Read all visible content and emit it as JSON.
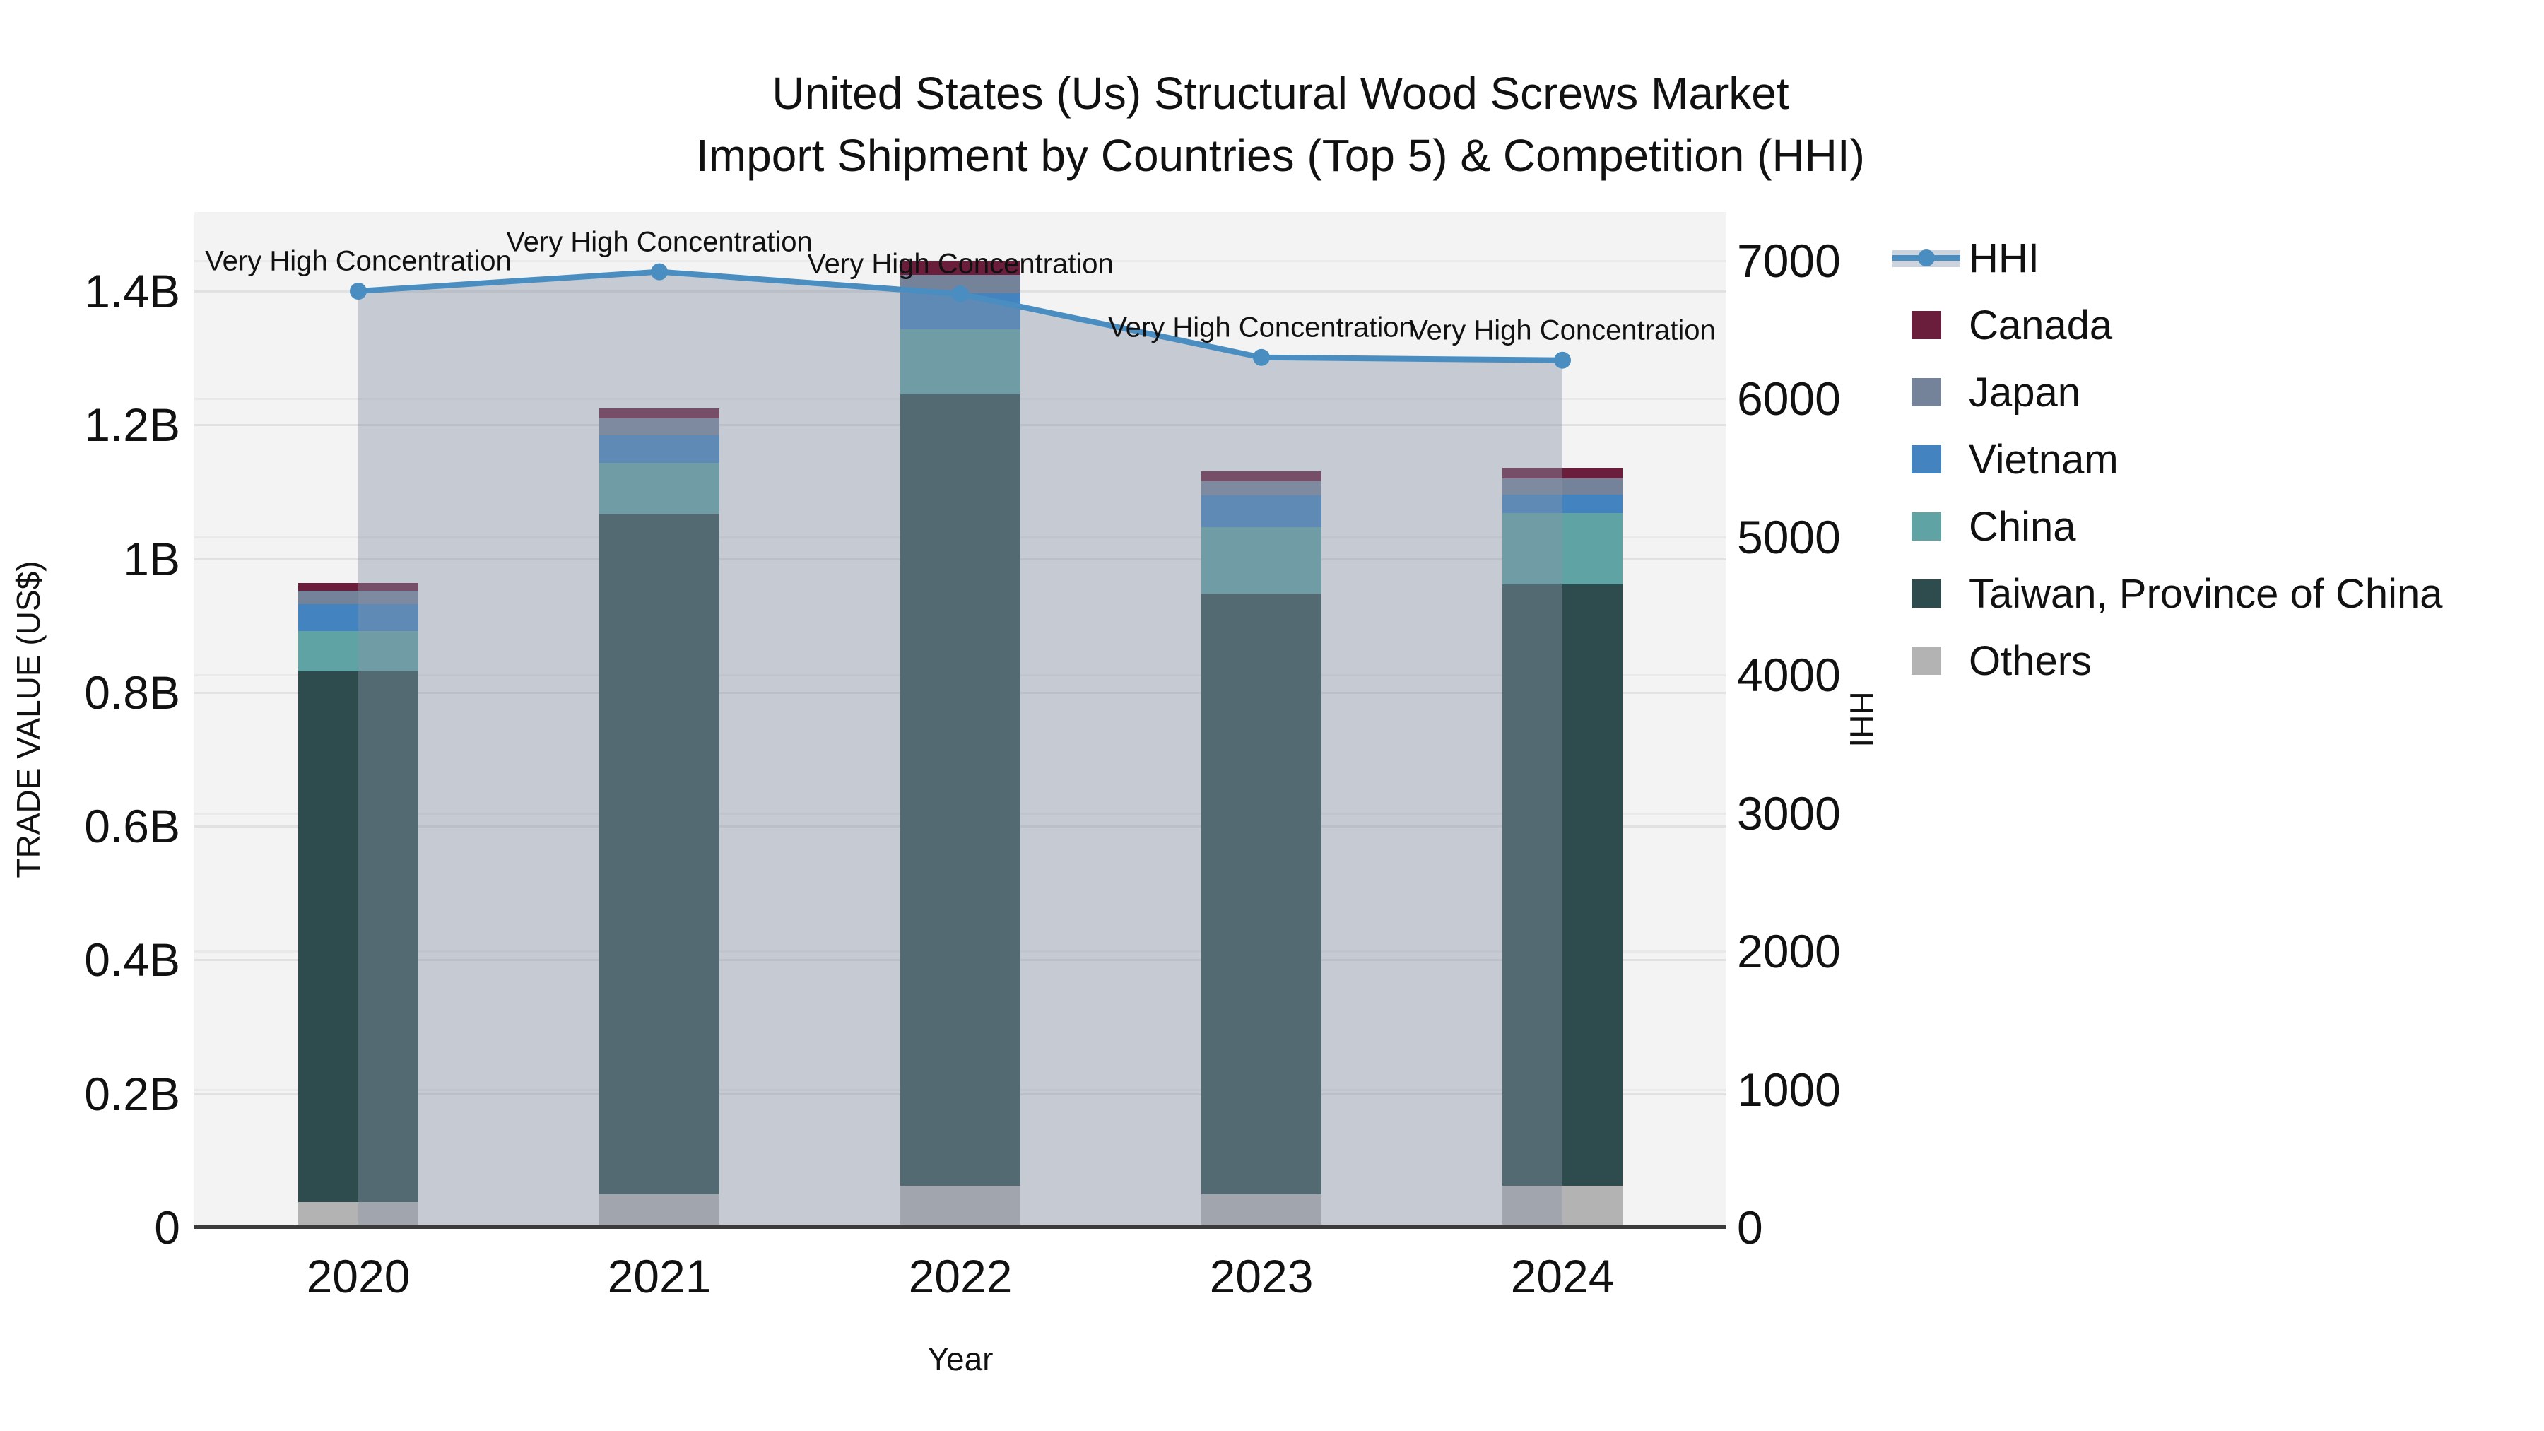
{
  "title": {
    "line1": "United States (Us) Structural Wood Screws Market",
    "line2": "Import Shipment by Countries (Top 5) & Competition (HHI)"
  },
  "axes": {
    "y_left": {
      "title": "TRADE VALUE (US$)",
      "tick_labels": [
        "0",
        "0.2B",
        "0.4B",
        "0.6B",
        "0.8B",
        "1B",
        "1.2B",
        "1.4B"
      ],
      "tick_values_musd": [
        0,
        200,
        400,
        600,
        800,
        1000,
        1200,
        1400
      ]
    },
    "y_right": {
      "title": "HHI",
      "tick_labels": [
        "0",
        "1000",
        "2000",
        "3000",
        "4000",
        "5000",
        "6000",
        "7000"
      ],
      "tick_values": [
        0,
        1000,
        2000,
        3000,
        4000,
        5000,
        6000,
        7000
      ]
    },
    "x": {
      "title": "Year",
      "categories": [
        "2020",
        "2021",
        "2022",
        "2023",
        "2024"
      ]
    }
  },
  "legend": {
    "items": [
      {
        "label": "HHI",
        "type": "line",
        "color": "#4a8dc0"
      },
      {
        "label": "Canada",
        "type": "swatch",
        "color": "#6b1d3c"
      },
      {
        "label": "Japan",
        "type": "swatch",
        "color": "#75839a"
      },
      {
        "label": "Vietnam",
        "type": "swatch",
        "color": "#4383c0"
      },
      {
        "label": "China",
        "type": "swatch",
        "color": "#60a3a4"
      },
      {
        "label": "Taiwan, Province of China",
        "type": "swatch",
        "color": "#2e4c4e"
      },
      {
        "label": "Others",
        "type": "swatch",
        "color": "#b3b3b4"
      }
    ]
  },
  "annotation_label": "Very High Concentration",
  "chart_data": {
    "type": "combo-stacked-bar-line",
    "categories": [
      "2020",
      "2021",
      "2022",
      "2023",
      "2024"
    ],
    "values_unit": "million US$",
    "bar_series_bottom_to_top": [
      {
        "name": "Others",
        "color": "#b3b3b4",
        "values": [
          38,
          50,
          62,
          50,
          62
        ]
      },
      {
        "name": "Taiwan, Province of China",
        "color": "#2e4c4e",
        "values": [
          794,
          1017,
          1184,
          898,
          900
        ]
      },
      {
        "name": "China",
        "color": "#60a3a4",
        "values": [
          60,
          76,
          97,
          99,
          106
        ]
      },
      {
        "name": "Vietnam",
        "color": "#4383c0",
        "values": [
          40,
          41,
          54,
          48,
          28
        ]
      },
      {
        "name": "Japan",
        "color": "#75839a",
        "values": [
          20,
          26,
          27,
          21,
          24
        ]
      },
      {
        "name": "Canada",
        "color": "#6b1d3c",
        "values": [
          12,
          15,
          20,
          15,
          16
        ]
      }
    ],
    "bar_totals_musd": [
      964,
      1225,
      1444,
      1131,
      1136
    ],
    "line_series": {
      "name": "HHI",
      "color": "#4a8dc0",
      "fill_color": "#8793a8",
      "fill_alpha": 0.42,
      "values": [
        6780,
        6920,
        6760,
        6300,
        6280
      ],
      "point_annotations": [
        "Very High Concentration",
        "Very High Concentration",
        "Very High Concentration",
        "Very High Concentration",
        "Very High Concentration"
      ]
    },
    "title": "United States (Us) Structural Wood Screws Market Import Shipment by Countries (Top 5) & Competition (HHI)",
    "xlabel": "Year",
    "ylabel_left": "TRADE VALUE (US$)",
    "ylabel_right": "HHI",
    "ylim_left_musd": [
      0,
      1518
    ],
    "ylim_right": [
      0,
      7352
    ],
    "grid": true,
    "legend_position": "right"
  },
  "colors": {
    "plot_bg": "#f3f3f3",
    "page_bg": "#ffffff",
    "grid_left": "#e1e1e1",
    "grid_right": "#e9e9e9",
    "axis_line": "#3b3b3b",
    "text": "#111111"
  }
}
